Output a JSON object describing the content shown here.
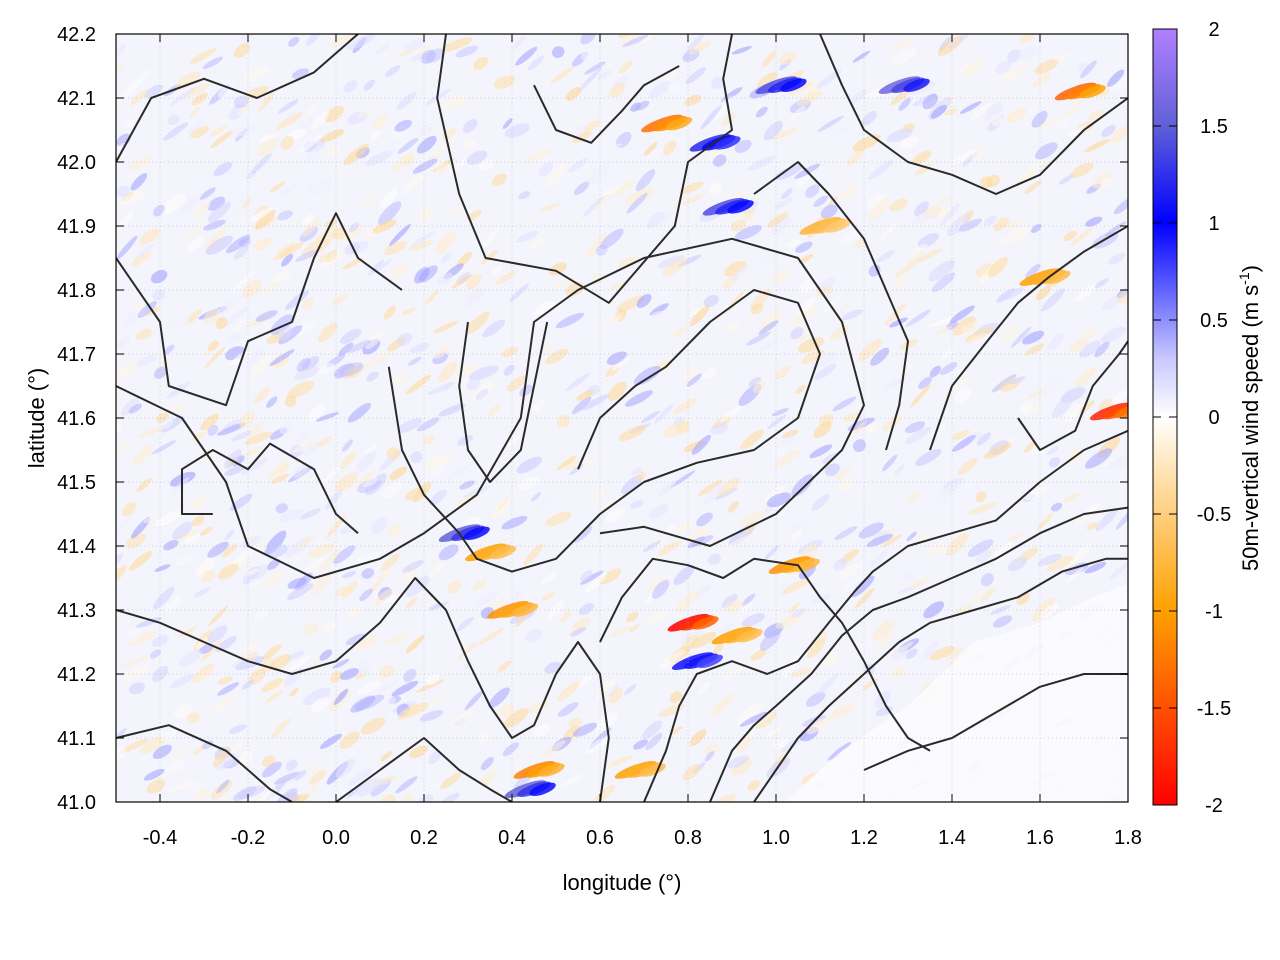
{
  "chart_data": {
    "type": "heatmap",
    "xlabel": "longitude (°)",
    "ylabel": "latitude (°)",
    "colorbar_label": "50m-vertical wind speed (m s",
    "colorbar_unit_exponent": "-1",
    "colorbar_label_close": ")",
    "xlim": [
      -0.5,
      1.8
    ],
    "ylim": [
      41.0,
      42.2
    ],
    "clim": [
      -2,
      2
    ],
    "xticks": [
      {
        "v": -0.4,
        "label": "-0.4"
      },
      {
        "v": -0.2,
        "label": "-0.2"
      },
      {
        "v": 0.0,
        "label": "0.0"
      },
      {
        "v": 0.2,
        "label": "0.2"
      },
      {
        "v": 0.4,
        "label": "0.4"
      },
      {
        "v": 0.6,
        "label": "0.6"
      },
      {
        "v": 0.8,
        "label": "0.8"
      },
      {
        "v": 1.0,
        "label": "1.0"
      },
      {
        "v": 1.2,
        "label": "1.2"
      },
      {
        "v": 1.4,
        "label": "1.4"
      },
      {
        "v": 1.6,
        "label": "1.6"
      },
      {
        "v": 1.8,
        "label": "1.8"
      }
    ],
    "yticks": [
      {
        "v": 41.0,
        "label": "41.0"
      },
      {
        "v": 41.1,
        "label": "41.1"
      },
      {
        "v": 41.2,
        "label": "41.2"
      },
      {
        "v": 41.3,
        "label": "41.3"
      },
      {
        "v": 41.4,
        "label": "41.4"
      },
      {
        "v": 41.5,
        "label": "41.5"
      },
      {
        "v": 41.6,
        "label": "41.6"
      },
      {
        "v": 41.7,
        "label": "41.7"
      },
      {
        "v": 41.8,
        "label": "41.8"
      },
      {
        "v": 41.9,
        "label": "41.9"
      },
      {
        "v": 42.0,
        "label": "42.0"
      },
      {
        "v": 42.1,
        "label": "42.1"
      },
      {
        "v": 42.2,
        "label": "42.2"
      }
    ],
    "cticks": [
      {
        "v": 2,
        "label": "2"
      },
      {
        "v": 1.5,
        "label": "1.5"
      },
      {
        "v": 1,
        "label": "1"
      },
      {
        "v": 0.5,
        "label": "0.5"
      },
      {
        "v": 0,
        "label": "0"
      },
      {
        "v": -0.5,
        "label": "-0.5"
      },
      {
        "v": -1,
        "label": "-1"
      },
      {
        "v": -1.5,
        "label": "-1.5"
      },
      {
        "v": -2,
        "label": "-2"
      }
    ],
    "grid": true,
    "colormap": [
      {
        "v": -2.0,
        "color": "#ff0000"
      },
      {
        "v": -1.0,
        "color": "#ffa000"
      },
      {
        "v": -0.3,
        "color": "#ffe2b0"
      },
      {
        "v": 0.0,
        "color": "#ffffff"
      },
      {
        "v": 0.3,
        "color": "#c8c8ff"
      },
      {
        "v": 1.0,
        "color": "#0000ff"
      },
      {
        "v": 1.5,
        "color": "#6060d8"
      },
      {
        "v": 2.0,
        "color": "#b080ff"
      }
    ],
    "hotspots": [
      {
        "x": 0.82,
        "y": 41.28,
        "value": -2.0
      },
      {
        "x": 0.76,
        "y": 42.06,
        "value": -1.3
      },
      {
        "x": 1.7,
        "y": 42.11,
        "value": -1.4
      },
      {
        "x": 1.62,
        "y": 41.82,
        "value": -1.0
      },
      {
        "x": 0.92,
        "y": 41.26,
        "value": -1.0
      },
      {
        "x": 1.05,
        "y": 41.37,
        "value": -1.1
      },
      {
        "x": 0.36,
        "y": 41.39,
        "value": -1.0
      },
      {
        "x": 0.41,
        "y": 41.3,
        "value": -1.1
      },
      {
        "x": 0.87,
        "y": 42.03,
        "value": 1.2
      },
      {
        "x": 0.9,
        "y": 41.93,
        "value": 1.4
      },
      {
        "x": 1.02,
        "y": 42.12,
        "value": 1.4
      },
      {
        "x": 1.3,
        "y": 42.12,
        "value": 1.6
      },
      {
        "x": 0.3,
        "y": 41.42,
        "value": 1.5
      },
      {
        "x": 0.45,
        "y": 41.02,
        "value": 1.5
      },
      {
        "x": 0.83,
        "y": 41.22,
        "value": 1.1
      },
      {
        "x": 1.78,
        "y": 41.61,
        "value": -1.8
      },
      {
        "x": 1.12,
        "y": 41.9,
        "value": -0.8
      },
      {
        "x": 0.47,
        "y": 41.05,
        "value": -1.2
      },
      {
        "x": 0.7,
        "y": 41.05,
        "value": -1.0
      }
    ],
    "contours": [
      [
        [
          -0.5,
          42.0
        ],
        [
          -0.42,
          42.1
        ],
        [
          -0.3,
          42.13
        ],
        [
          -0.18,
          42.1
        ],
        [
          -0.05,
          42.14
        ],
        [
          0.05,
          42.2
        ]
      ],
      [
        [
          0.25,
          42.2
        ],
        [
          0.23,
          42.1
        ],
        [
          0.28,
          41.95
        ],
        [
          0.34,
          41.85
        ],
        [
          0.5,
          41.83
        ],
        [
          0.62,
          41.78
        ],
        [
          0.77,
          41.9
        ],
        [
          0.8,
          42.0
        ],
        [
          0.9,
          42.05
        ],
        [
          0.88,
          42.13
        ],
        [
          0.9,
          42.2
        ]
      ],
      [
        [
          -0.5,
          41.85
        ],
        [
          -0.4,
          41.75
        ],
        [
          -0.38,
          41.65
        ],
        [
          -0.25,
          41.62
        ],
        [
          -0.2,
          41.72
        ],
        [
          -0.1,
          41.75
        ],
        [
          -0.05,
          41.85
        ],
        [
          0.0,
          41.92
        ],
        [
          0.05,
          41.85
        ],
        [
          0.15,
          41.8
        ]
      ],
      [
        [
          -0.5,
          41.65
        ],
        [
          -0.35,
          41.6
        ],
        [
          -0.25,
          41.5
        ],
        [
          -0.2,
          41.4
        ],
        [
          -0.05,
          41.35
        ],
        [
          0.1,
          41.38
        ],
        [
          0.2,
          41.42
        ],
        [
          0.32,
          41.48
        ],
        [
          0.42,
          41.6
        ],
        [
          0.45,
          41.75
        ],
        [
          0.55,
          41.8
        ],
        [
          0.7,
          41.85
        ],
        [
          0.9,
          41.88
        ],
        [
          1.05,
          41.85
        ],
        [
          1.15,
          41.75
        ],
        [
          1.2,
          41.62
        ],
        [
          1.15,
          41.55
        ],
        [
          1.0,
          41.45
        ],
        [
          0.85,
          41.4
        ],
        [
          0.7,
          41.43
        ],
        [
          0.6,
          41.42
        ]
      ],
      [
        [
          -0.28,
          41.45
        ],
        [
          -0.35,
          41.45
        ],
        [
          -0.35,
          41.52
        ],
        [
          -0.28,
          41.55
        ],
        [
          -0.2,
          41.52
        ],
        [
          -0.15,
          41.56
        ],
        [
          -0.05,
          41.52
        ],
        [
          0.0,
          41.45
        ],
        [
          0.05,
          41.42
        ]
      ],
      [
        [
          0.12,
          41.68
        ],
        [
          0.15,
          41.55
        ],
        [
          0.2,
          41.48
        ],
        [
          0.28,
          41.42
        ],
        [
          0.32,
          41.38
        ],
        [
          0.4,
          41.36
        ],
        [
          0.5,
          41.38
        ],
        [
          0.6,
          41.45
        ],
        [
          0.7,
          41.5
        ],
        [
          0.82,
          41.53
        ],
        [
          0.95,
          41.55
        ],
        [
          1.05,
          41.6
        ],
        [
          1.1,
          41.7
        ],
        [
          1.05,
          41.78
        ],
        [
          0.95,
          41.8
        ],
        [
          0.85,
          41.75
        ],
        [
          0.75,
          41.68
        ],
        [
          0.68,
          41.65
        ],
        [
          0.6,
          41.6
        ],
        [
          0.55,
          41.52
        ]
      ],
      [
        [
          0.3,
          41.75
        ],
        [
          0.28,
          41.65
        ],
        [
          0.3,
          41.55
        ],
        [
          0.35,
          41.5
        ],
        [
          0.42,
          41.55
        ],
        [
          0.45,
          41.65
        ],
        [
          0.48,
          41.75
        ]
      ],
      [
        [
          -0.5,
          41.3
        ],
        [
          -0.4,
          41.28
        ],
        [
          -0.3,
          41.25
        ],
        [
          -0.2,
          41.22
        ],
        [
          -0.1,
          41.2
        ],
        [
          0.0,
          41.22
        ],
        [
          0.1,
          41.28
        ],
        [
          0.18,
          41.35
        ],
        [
          0.25,
          41.3
        ],
        [
          0.3,
          41.22
        ],
        [
          0.35,
          41.15
        ],
        [
          0.4,
          41.1
        ],
        [
          0.45,
          41.12
        ],
        [
          0.5,
          41.2
        ],
        [
          0.55,
          41.25
        ],
        [
          0.6,
          41.2
        ],
        [
          0.62,
          41.1
        ],
        [
          0.6,
          41.0
        ]
      ],
      [
        [
          -0.5,
          41.1
        ],
        [
          -0.38,
          41.12
        ],
        [
          -0.25,
          41.08
        ],
        [
          -0.15,
          41.02
        ],
        [
          -0.1,
          41.0
        ]
      ],
      [
        [
          0.0,
          41.0
        ],
        [
          0.1,
          41.05
        ],
        [
          0.2,
          41.1
        ],
        [
          0.28,
          41.05
        ],
        [
          0.35,
          41.02
        ],
        [
          0.4,
          41.0
        ]
      ],
      [
        [
          0.6,
          41.25
        ],
        [
          0.65,
          41.32
        ],
        [
          0.72,
          41.38
        ],
        [
          0.8,
          41.37
        ],
        [
          0.88,
          41.35
        ],
        [
          0.95,
          41.38
        ],
        [
          1.05,
          41.37
        ],
        [
          1.1,
          41.32
        ],
        [
          1.15,
          41.28
        ],
        [
          1.2,
          41.22
        ],
        [
          1.25,
          41.15
        ],
        [
          1.3,
          41.1
        ],
        [
          1.35,
          41.08
        ]
      ],
      [
        [
          0.7,
          41.0
        ],
        [
          0.75,
          41.08
        ],
        [
          0.78,
          41.15
        ],
        [
          0.82,
          41.2
        ],
        [
          0.9,
          41.22
        ],
        [
          0.98,
          41.2
        ],
        [
          1.05,
          41.22
        ],
        [
          1.12,
          41.28
        ],
        [
          1.18,
          41.33
        ],
        [
          1.22,
          41.36
        ],
        [
          1.3,
          41.4
        ],
        [
          1.4,
          41.42
        ],
        [
          1.5,
          41.44
        ],
        [
          1.6,
          41.5
        ],
        [
          1.7,
          41.55
        ],
        [
          1.8,
          41.58
        ]
      ],
      [
        [
          0.85,
          41.0
        ],
        [
          0.9,
          41.08
        ],
        [
          0.95,
          41.12
        ],
        [
          1.0,
          41.15
        ],
        [
          1.08,
          41.2
        ],
        [
          1.15,
          41.26
        ],
        [
          1.22,
          41.3
        ],
        [
          1.3,
          41.32
        ],
        [
          1.4,
          41.35
        ],
        [
          1.5,
          41.38
        ],
        [
          1.6,
          41.42
        ],
        [
          1.7,
          41.45
        ],
        [
          1.8,
          41.46
        ]
      ],
      [
        [
          0.95,
          41.0
        ],
        [
          1.0,
          41.05
        ],
        [
          1.05,
          41.1
        ],
        [
          1.12,
          41.15
        ],
        [
          1.2,
          41.2
        ],
        [
          1.28,
          41.25
        ],
        [
          1.35,
          41.28
        ],
        [
          1.45,
          41.3
        ],
        [
          1.55,
          41.32
        ],
        [
          1.65,
          41.36
        ],
        [
          1.75,
          41.38
        ],
        [
          1.8,
          41.38
        ]
      ],
      [
        [
          1.2,
          41.05
        ],
        [
          1.3,
          41.08
        ],
        [
          1.4,
          41.1
        ],
        [
          1.5,
          41.14
        ],
        [
          1.6,
          41.18
        ],
        [
          1.7,
          41.2
        ],
        [
          1.8,
          41.2
        ]
      ],
      [
        [
          1.1,
          42.2
        ],
        [
          1.15,
          42.12
        ],
        [
          1.2,
          42.05
        ],
        [
          1.3,
          42.0
        ],
        [
          1.4,
          41.98
        ],
        [
          1.5,
          41.95
        ],
        [
          1.6,
          41.98
        ],
        [
          1.7,
          42.05
        ],
        [
          1.8,
          42.1
        ]
      ],
      [
        [
          1.35,
          41.55
        ],
        [
          1.4,
          41.65
        ],
        [
          1.48,
          41.72
        ],
        [
          1.55,
          41.78
        ],
        [
          1.62,
          41.82
        ],
        [
          1.7,
          41.86
        ],
        [
          1.8,
          41.9
        ]
      ],
      [
        [
          0.95,
          41.95
        ],
        [
          1.05,
          42.0
        ],
        [
          1.12,
          41.95
        ],
        [
          1.2,
          41.88
        ],
        [
          1.25,
          41.8
        ],
        [
          1.3,
          41.72
        ],
        [
          1.28,
          41.62
        ],
        [
          1.25,
          41.55
        ]
      ],
      [
        [
          0.45,
          42.12
        ],
        [
          0.5,
          42.05
        ],
        [
          0.58,
          42.03
        ],
        [
          0.65,
          42.08
        ],
        [
          0.7,
          42.12
        ],
        [
          0.78,
          42.15
        ]
      ],
      [
        [
          1.55,
          41.6
        ],
        [
          1.6,
          41.55
        ],
        [
          1.68,
          41.58
        ],
        [
          1.72,
          41.65
        ],
        [
          1.78,
          41.7
        ],
        [
          1.8,
          41.72
        ]
      ]
    ]
  }
}
